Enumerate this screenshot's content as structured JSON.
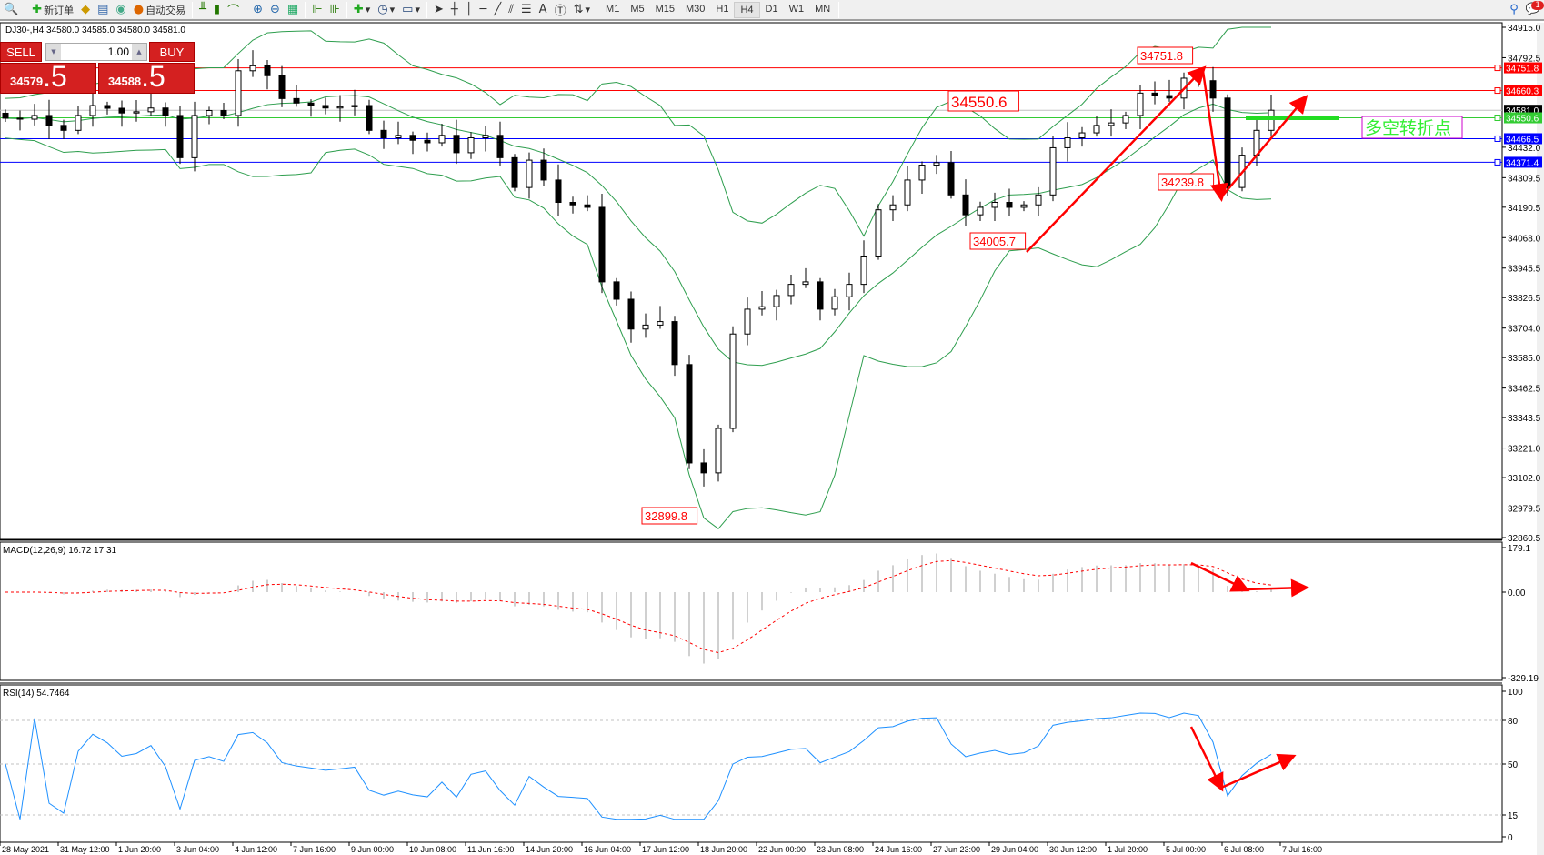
{
  "toolbar": {
    "new_order": "新订单",
    "auto_trading": "自动交易",
    "timeframes": [
      "M1",
      "M5",
      "M15",
      "M30",
      "H1",
      "H4",
      "D1",
      "W1",
      "MN"
    ],
    "active_timeframe": "H4",
    "notification_count": "1"
  },
  "chart_header": "DJ30-,H4  34580.0 34585.0 34580.0 34581.0",
  "trade_panel": {
    "sell_label": "SELL",
    "buy_label": "BUY",
    "lot": "1.00",
    "sell_price_main": "34579",
    "sell_price_big": ".5",
    "buy_price_main": "34588",
    "buy_price_big": ".5"
  },
  "price_axis": [
    "34915.0",
    "34792.5",
    "34432.0",
    "34309.5",
    "34190.5",
    "34068.0",
    "33945.5",
    "33826.5",
    "33704.0",
    "33585.0",
    "33462.5",
    "33343.5",
    "33221.0",
    "33102.0",
    "32979.5",
    "32860.5"
  ],
  "levels": [
    {
      "price": 34751.8,
      "label": "34751.8",
      "color": "#ff0000"
    },
    {
      "price": 34660.3,
      "label": "34660.3",
      "color": "#ff0000"
    },
    {
      "price": 34581.0,
      "label": "34581.0",
      "color": "#000000"
    },
    {
      "price": 34550.6,
      "label": "34550.6",
      "color": "#33cc33"
    },
    {
      "price": 34466.5,
      "label": "34466.5",
      "color": "#0000ff"
    },
    {
      "price": 34371.4,
      "label": "34371.4",
      "color": "#0000ff"
    }
  ],
  "annotations": [
    "34751.8",
    "34550.6",
    "34239.8",
    "34005.7",
    "32899.8"
  ],
  "turning_point_label": "多空转折点",
  "macd": {
    "title": "MACD(12,26,9) 16.72 17.31",
    "axis": [
      "179.1",
      "0.00",
      "-329.19"
    ]
  },
  "rsi": {
    "title": "RSI(14) 54.7464",
    "axis": [
      "100",
      "80",
      "50",
      "15",
      "0"
    ]
  },
  "time_axis": [
    "28 May 2021",
    "31 May 12:00",
    "1 Jun 20:00",
    "3 Jun 04:00",
    "4 Jun 12:00",
    "7 Jun 16:00",
    "9 Jun 00:00",
    "10 Jun 08:00",
    "11 Jun 16:00",
    "14 Jun 20:00",
    "16 Jun 04:00",
    "17 Jun 12:00",
    "18 Jun 20:00",
    "22 Jun 00:00",
    "23 Jun 08:00",
    "24 Jun 16:00",
    "27 Jun 23:00",
    "29 Jun 04:00",
    "30 Jun 12:00",
    "1 Jul 20:00",
    "5 Jul 00:00",
    "6 Jul 08:00",
    "7 Jul 16:00"
  ],
  "chart_data": {
    "type": "candlestick",
    "symbol": "DJ30-",
    "timeframe": "H4",
    "ylim": [
      32860.5,
      34915.0
    ],
    "closes": [
      34549,
      34545,
      34560,
      34520,
      34500,
      34560,
      34600,
      34589,
      34570,
      34575,
      34590,
      34560,
      34390,
      34560,
      34580,
      34560,
      34740,
      34760,
      34720,
      34628,
      34610,
      34600,
      34590,
      34595,
      34600,
      34500,
      34470,
      34480,
      34460,
      34450,
      34480,
      34410,
      34470,
      34480,
      34390,
      34270,
      34380,
      34300,
      34210,
      34200,
      34190,
      33890,
      33820,
      33700,
      33716,
      33730,
      33557,
      33161,
      33121,
      33300,
      33680,
      33780,
      33790,
      33835,
      33880,
      33890,
      33780,
      33830,
      33880,
      33994,
      34180,
      34200,
      34300,
      34360,
      34370,
      34240,
      34160,
      34190,
      34210,
      34190,
      34200,
      34240,
      34430,
      34470,
      34490,
      34520,
      34530,
      34560,
      34650,
      34640,
      34630,
      34710,
      34700,
      34630,
      34270,
      34400,
      34500,
      34581
    ],
    "bands_color": "#2e9e4e",
    "macd_signal_color": "#ff0000",
    "rsi_color": "#1e90ff"
  }
}
